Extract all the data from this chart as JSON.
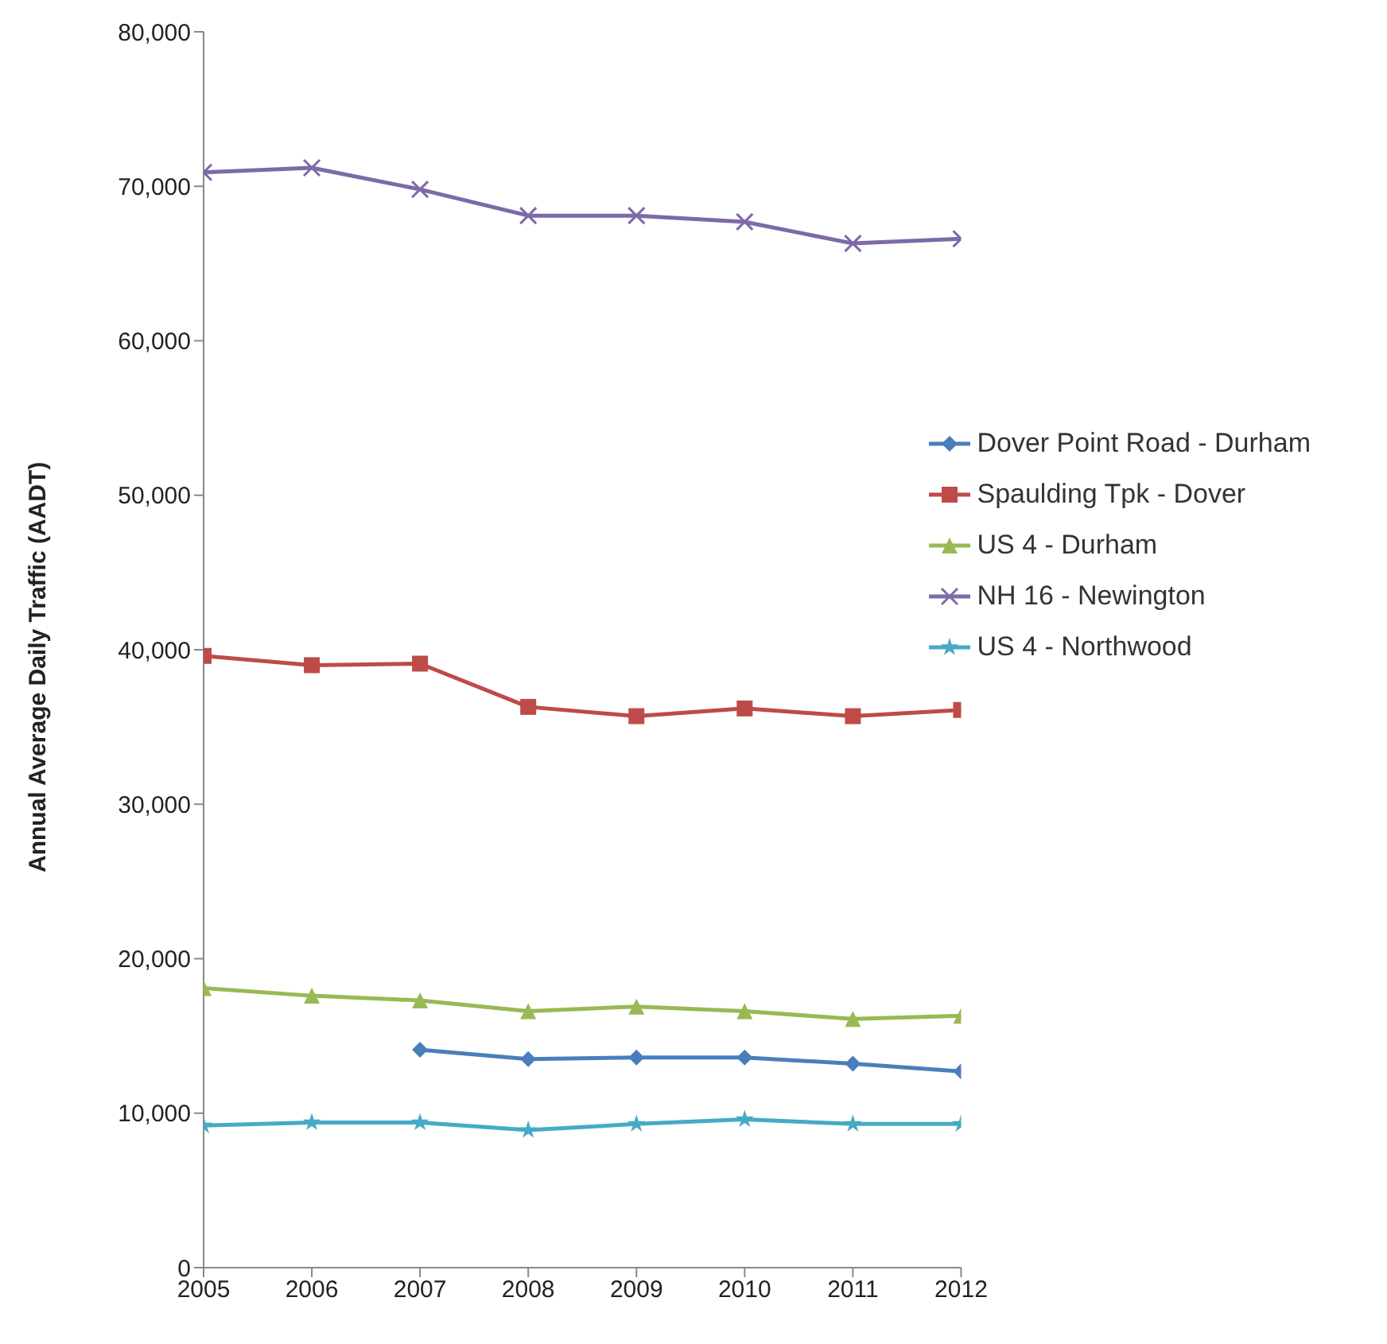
{
  "chart_data": {
    "type": "line",
    "ylabel": "Annual Average Daily Traffic (AADT)",
    "x": [
      2005,
      2006,
      2007,
      2008,
      2009,
      2010,
      2011,
      2012
    ],
    "xlim": [
      2005,
      2012
    ],
    "xticks": [
      2005,
      2006,
      2007,
      2008,
      2009,
      2010,
      2011,
      2012
    ],
    "ylim": [
      0,
      80000
    ],
    "yticks": [
      {
        "value": 0,
        "label": "0"
      },
      {
        "value": 10000,
        "label": "10,000"
      },
      {
        "value": 20000,
        "label": "20,000"
      },
      {
        "value": 30000,
        "label": "30,000"
      },
      {
        "value": 40000,
        "label": "40,000"
      },
      {
        "value": 50000,
        "label": "50,000"
      },
      {
        "value": 60000,
        "label": "60,000"
      },
      {
        "value": 70000,
        "label": "70,000"
      },
      {
        "value": 80000,
        "label": "80,000"
      }
    ],
    "grid": false,
    "legend": "right",
    "series": [
      {
        "name": "Dover Point Road - Durham",
        "color": "#4a7ebb",
        "marker": "diamond",
        "values": [
          null,
          null,
          14100,
          13500,
          13600,
          13600,
          13200,
          12700
        ]
      },
      {
        "name": "Spaulding Tpk - Dover",
        "color": "#be4b48",
        "marker": "square",
        "values": [
          39600,
          39000,
          39100,
          36300,
          35700,
          36200,
          35700,
          36100
        ]
      },
      {
        "name": "US 4 - Durham",
        "color": "#98b954",
        "marker": "triangle",
        "values": [
          18100,
          17600,
          17300,
          16600,
          16900,
          16600,
          16100,
          16300
        ]
      },
      {
        "name": "NH 16 - Newington",
        "color": "#7d6aa8",
        "marker": "cross",
        "values": [
          70900,
          71200,
          69800,
          68100,
          68100,
          67700,
          66300,
          66600
        ]
      },
      {
        "name": "US 4 - Northwood",
        "color": "#46aac5",
        "marker": "star",
        "values": [
          9200,
          9400,
          9400,
          8900,
          9300,
          9600,
          9300,
          9300
        ]
      }
    ]
  }
}
